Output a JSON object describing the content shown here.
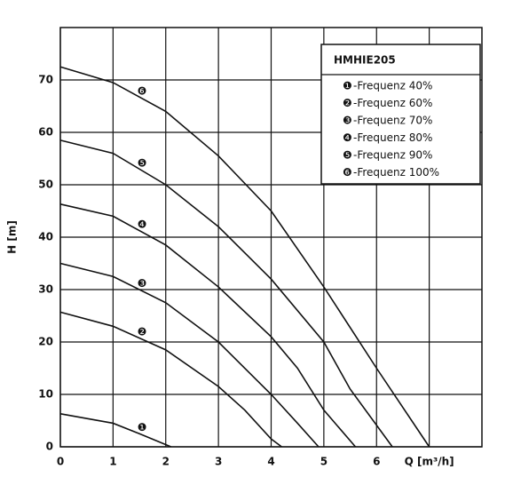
{
  "chart_data": {
    "type": "line",
    "title": "HMHIE205",
    "ylabel": "H [m]",
    "xlim": [
      0,
      8
    ],
    "ylim": [
      0,
      80
    ],
    "xticks": [
      0,
      1,
      2,
      3,
      4,
      5,
      6,
      {
        "value": 7,
        "label": "Q [m³/h]"
      }
    ],
    "yticks": [
      0,
      10,
      20,
      30,
      40,
      50,
      60,
      70
    ],
    "grid": true,
    "legend": "upper right",
    "color": "#111111",
    "series": [
      {
        "label": "❶",
        "name": "-Frequenz 40%",
        "x": [
          0,
          1,
          1.5,
          2.1
        ],
        "values": [
          6.3,
          4.5,
          2.5,
          0
        ]
      },
      {
        "label": "❷",
        "name": "-Frequenz 60%",
        "x": [
          0,
          1,
          2,
          3,
          3.5,
          4,
          4.2
        ],
        "values": [
          25.7,
          23,
          18.5,
          11.5,
          7,
          1.5,
          0
        ]
      },
      {
        "label": "❸",
        "name": "-Frequenz 70%",
        "x": [
          0,
          1,
          2,
          3,
          4,
          4.5,
          4.9
        ],
        "values": [
          35,
          32.5,
          27.5,
          20,
          10,
          4.5,
          0
        ]
      },
      {
        "label": "❹",
        "name": "-Frequenz 80%",
        "x": [
          0,
          1,
          2,
          3,
          4,
          4.5,
          5,
          5.6
        ],
        "values": [
          46.3,
          44,
          38.5,
          30.5,
          21,
          15,
          7,
          0
        ]
      },
      {
        "label": "❺",
        "name": "-Frequenz 90%",
        "x": [
          0,
          1,
          2,
          3,
          4,
          5,
          5.5,
          6.3
        ],
        "values": [
          58.5,
          56,
          50,
          42,
          32,
          20,
          11,
          0
        ]
      },
      {
        "label": "❻",
        "name": "-Frequenz 100%",
        "x": [
          0,
          1,
          2,
          3,
          4,
          5,
          6,
          7
        ],
        "values": [
          72.5,
          69.5,
          64,
          55.5,
          45,
          30.5,
          15,
          0
        ]
      }
    ]
  }
}
